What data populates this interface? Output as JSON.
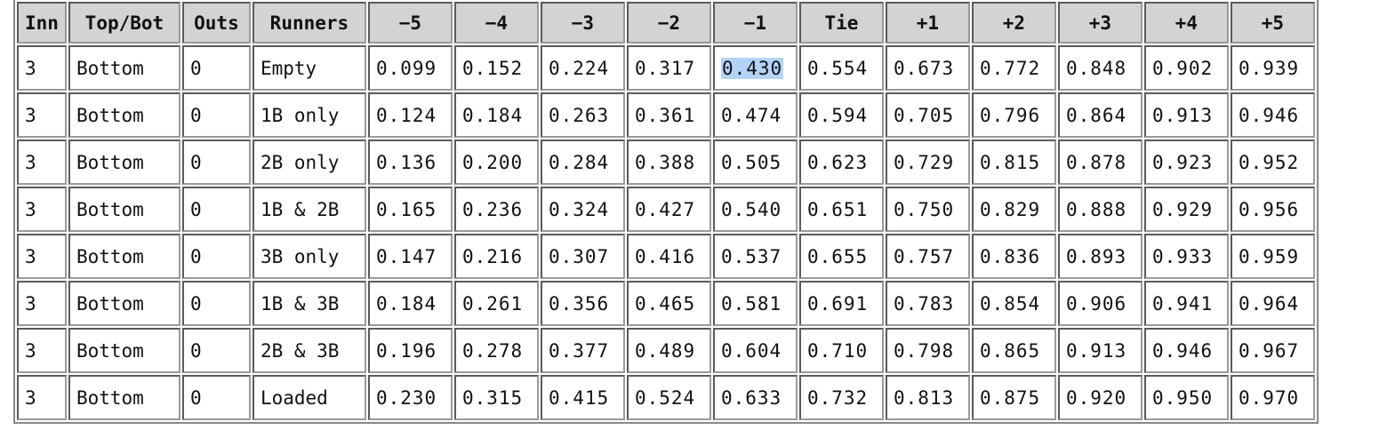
{
  "table": {
    "headers": [
      "Inn",
      "Top/Bot",
      "Outs",
      "Runners",
      "−5",
      "−4",
      "−3",
      "−2",
      "−1",
      "Tie",
      "+1",
      "+2",
      "+3",
      "+4",
      "+5"
    ],
    "rows": [
      [
        "3",
        "Bottom",
        "0",
        "Empty",
        "0.099",
        "0.152",
        "0.224",
        "0.317",
        "0.430",
        "0.554",
        "0.673",
        "0.772",
        "0.848",
        "0.902",
        "0.939"
      ],
      [
        "3",
        "Bottom",
        "0",
        "1B only",
        "0.124",
        "0.184",
        "0.263",
        "0.361",
        "0.474",
        "0.594",
        "0.705",
        "0.796",
        "0.864",
        "0.913",
        "0.946"
      ],
      [
        "3",
        "Bottom",
        "0",
        "2B only",
        "0.136",
        "0.200",
        "0.284",
        "0.388",
        "0.505",
        "0.623",
        "0.729",
        "0.815",
        "0.878",
        "0.923",
        "0.952"
      ],
      [
        "3",
        "Bottom",
        "0",
        "1B & 2B",
        "0.165",
        "0.236",
        "0.324",
        "0.427",
        "0.540",
        "0.651",
        "0.750",
        "0.829",
        "0.888",
        "0.929",
        "0.956"
      ],
      [
        "3",
        "Bottom",
        "0",
        "3B only",
        "0.147",
        "0.216",
        "0.307",
        "0.416",
        "0.537",
        "0.655",
        "0.757",
        "0.836",
        "0.893",
        "0.933",
        "0.959"
      ],
      [
        "3",
        "Bottom",
        "0",
        "1B & 3B",
        "0.184",
        "0.261",
        "0.356",
        "0.465",
        "0.581",
        "0.691",
        "0.783",
        "0.854",
        "0.906",
        "0.941",
        "0.964"
      ],
      [
        "3",
        "Bottom",
        "0",
        "2B & 3B",
        "0.196",
        "0.278",
        "0.377",
        "0.489",
        "0.604",
        "0.710",
        "0.798",
        "0.865",
        "0.913",
        "0.946",
        "0.967"
      ],
      [
        "3",
        "Bottom",
        "0",
        "Loaded",
        "0.230",
        "0.315",
        "0.415",
        "0.524",
        "0.633",
        "0.732",
        "0.813",
        "0.875",
        "0.920",
        "0.950",
        "0.970"
      ]
    ],
    "selected_cell": {
      "row": 0,
      "col": 8
    },
    "colors": {
      "header_bg": "#d3d3d3",
      "selection_highlight": "#b4d3f8",
      "border": "#6e6e6e"
    }
  }
}
